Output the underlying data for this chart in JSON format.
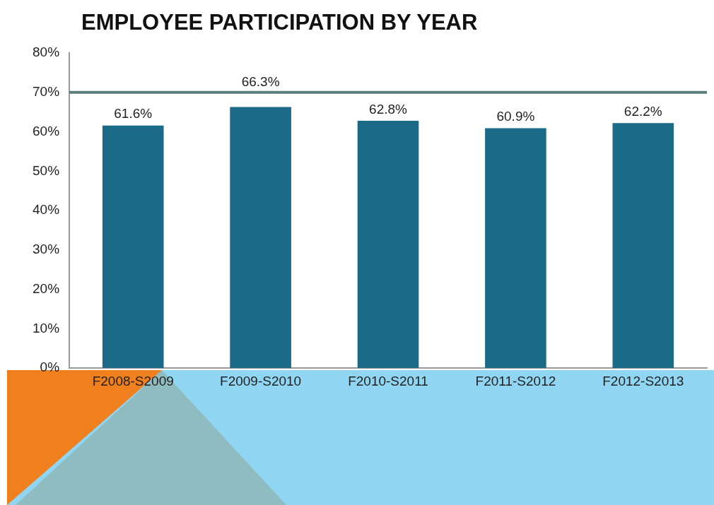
{
  "chart_data": {
    "type": "bar",
    "title": "EMPLOYEE PARTICIPATION BY YEAR",
    "categories": [
      "F2008-S2009",
      "F2009-S2010",
      "F2010-S2011",
      "F2011-S2012",
      "F2012-S2013"
    ],
    "values": [
      61.6,
      66.3,
      62.8,
      60.9,
      62.2
    ],
    "color": "#1a6a88",
    "ylim": [
      0,
      80
    ],
    "yticks": [
      {
        "value": 0,
        "label": "0%"
      },
      {
        "value": 10,
        "label": "10%"
      },
      {
        "value": 20,
        "label": "20%"
      },
      {
        "value": 30,
        "label": "30%"
      },
      {
        "value": 40,
        "label": "40%"
      },
      {
        "value": 50,
        "label": "50%"
      },
      {
        "value": 60,
        "label": "60%"
      },
      {
        "value": 70,
        "label": "70%"
      },
      {
        "value": 80,
        "label": "80%"
      }
    ],
    "value_labels": [
      "61.6%",
      "66.3%",
      "62.8%",
      "60.9%",
      "62.2%"
    ],
    "ref_lines": [
      {
        "axis": "y",
        "value": 70,
        "color": "#5b7f7d"
      }
    ],
    "grid": false,
    "legend": false
  }
}
